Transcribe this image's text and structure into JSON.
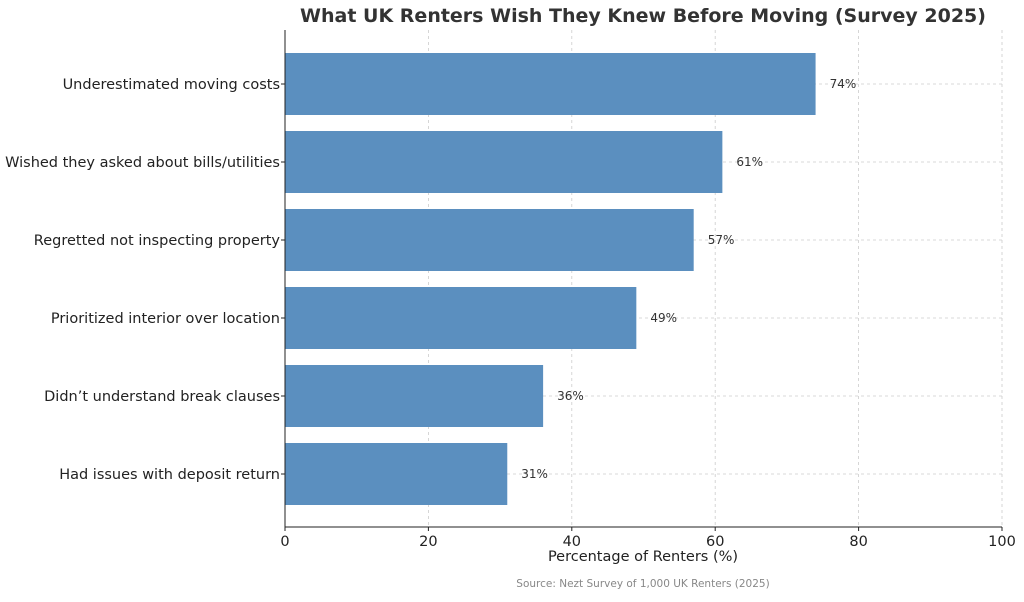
{
  "chart_data": {
    "type": "bar",
    "orientation": "horizontal",
    "title": "What UK Renters Wish They Knew Before Moving (Survey 2025)",
    "xlabel": "Percentage of Renters (%)",
    "ylabel": "",
    "categories": [
      "Underestimated moving costs",
      "Wished they asked about bills/utilities",
      "Regretted not inspecting property",
      "Prioritized interior over location",
      "Didn’t understand break clauses",
      "Had issues with deposit return"
    ],
    "values": [
      74,
      61,
      57,
      49,
      36,
      31
    ],
    "value_labels": [
      "74%",
      "61%",
      "57%",
      "49%",
      "36%",
      "31%"
    ],
    "xlim": [
      0,
      100
    ],
    "xticks": [
      0,
      20,
      40,
      60,
      80,
      100
    ],
    "xtick_labels": [
      "0",
      "20",
      "40",
      "60",
      "80",
      "100"
    ],
    "grid": true,
    "bar_color": "#5b8fbf",
    "source": "Source: Nezt Survey of 1,000 UK Renters (2025)"
  }
}
